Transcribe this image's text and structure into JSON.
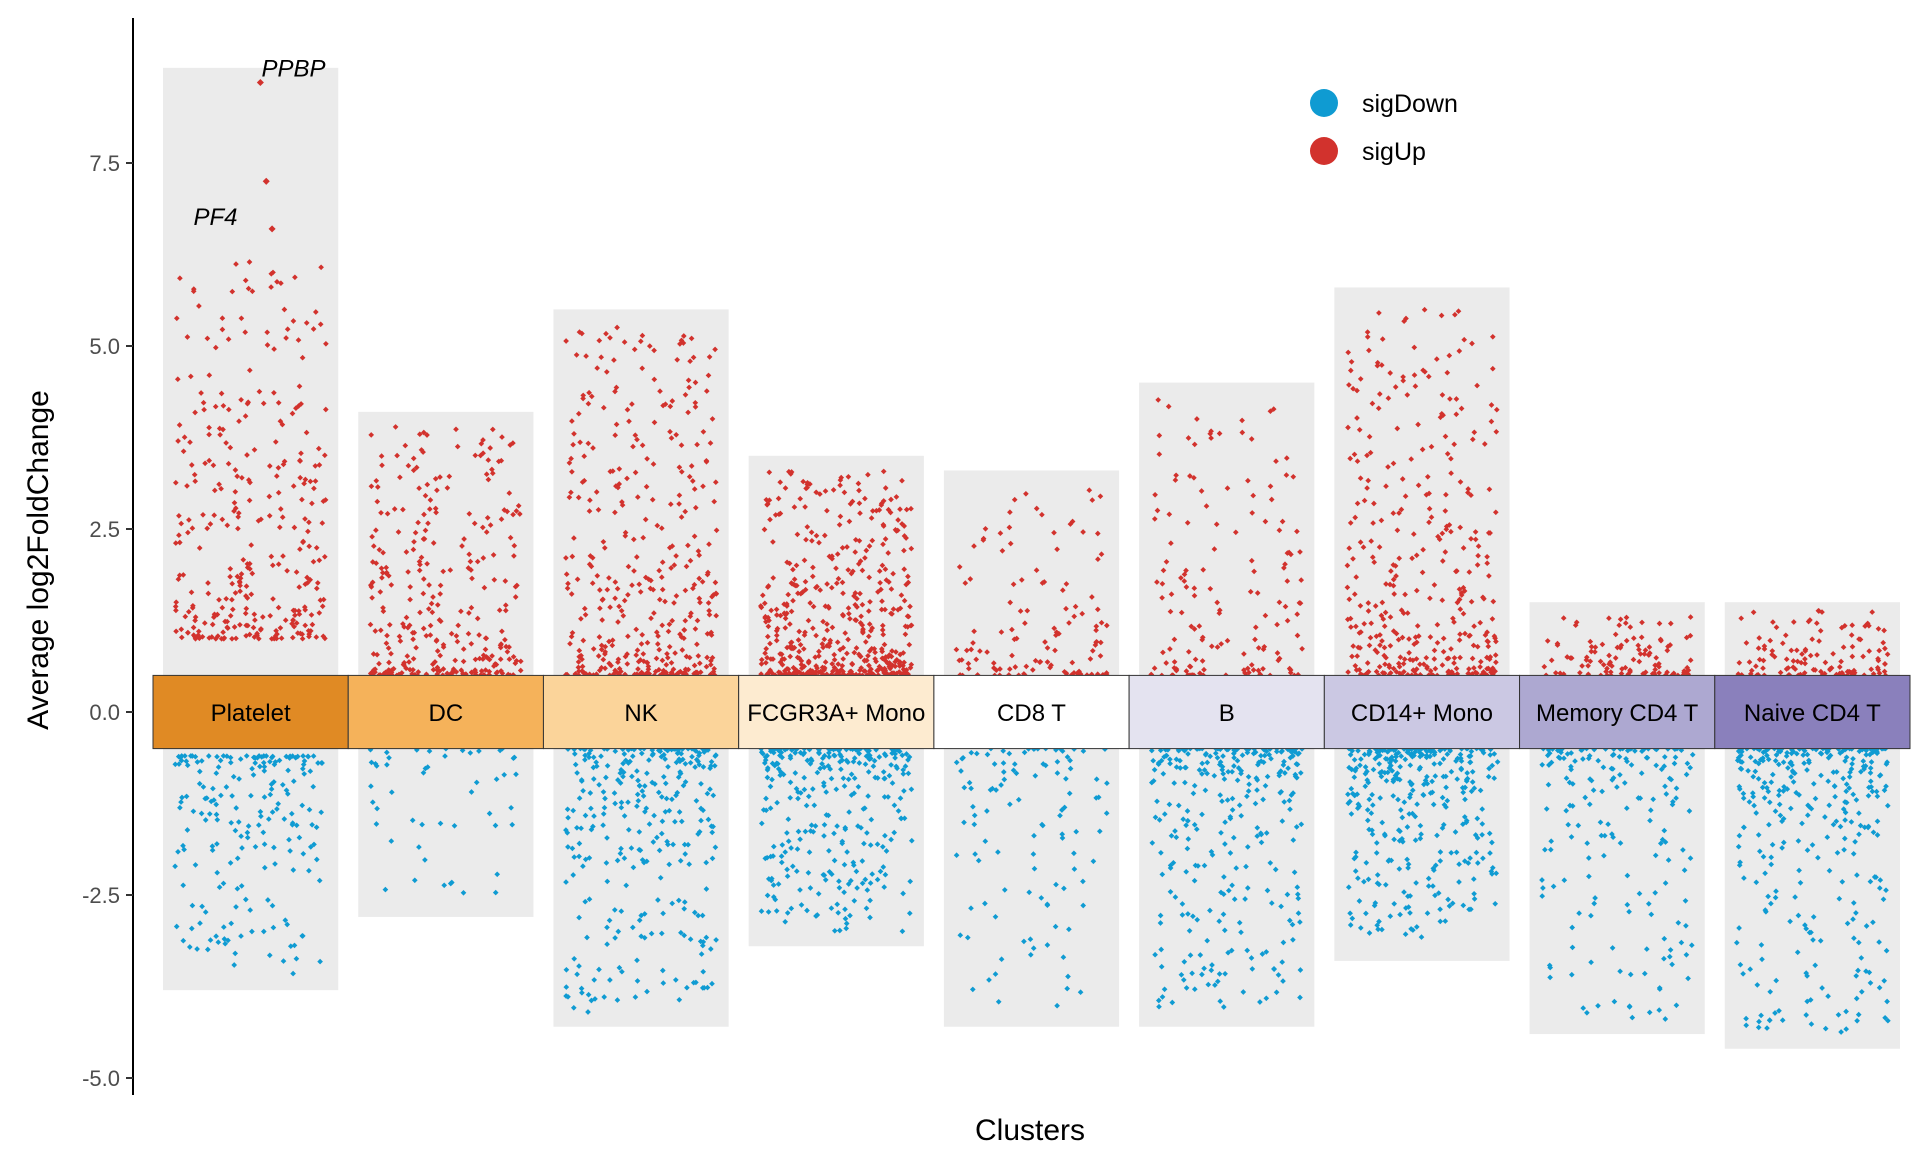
{
  "chart_data": {
    "type": "scatter",
    "title": "",
    "xlabel": "Clusters",
    "ylabel": "Average log2FoldChange",
    "ylim": [
      -5.0,
      9.5
    ],
    "yticks": [
      {
        "value": 7.5,
        "label": "7.5"
      },
      {
        "value": 5.0,
        "label": "5.0"
      },
      {
        "value": 2.5,
        "label": "2.5"
      },
      {
        "value": 0.0,
        "label": "0.0"
      },
      {
        "value": -2.5,
        "label": "-2.5"
      },
      {
        "value": -5.0,
        "label": "-5.0"
      }
    ],
    "grid": false,
    "legend_position": "top-right",
    "legend": [
      {
        "name": "sigDown",
        "color": "#0f9bd2"
      },
      {
        "name": "sigUp",
        "color": "#d2322d"
      }
    ],
    "clusters": [
      {
        "name": "Platelet",
        "color": "#e08a24",
        "bg_min": -3.8,
        "bg_max": 8.8,
        "up_n": 320,
        "up_range": [
          1.0,
          6.2
        ],
        "down_n": 200,
        "down_range": [
          -3.6,
          -0.6
        ]
      },
      {
        "name": "DC",
        "color": "#f5b25a",
        "bg_min": -2.8,
        "bg_max": 4.1,
        "up_n": 300,
        "up_range": [
          0.5,
          3.9
        ],
        "down_n": 50,
        "down_range": [
          -2.6,
          -0.5
        ]
      },
      {
        "name": "NK",
        "color": "#fbd49a",
        "bg_min": -4.3,
        "bg_max": 5.5,
        "up_n": 380,
        "up_range": [
          0.5,
          5.3
        ],
        "down_n": 300,
        "down_range": [
          -4.1,
          -0.5
        ]
      },
      {
        "name": "FCGR3A+ Mono",
        "color": "#fdebd0",
        "bg_min": -3.2,
        "bg_max": 3.5,
        "up_n": 480,
        "up_range": [
          0.5,
          3.3
        ],
        "down_n": 300,
        "down_range": [
          -3.0,
          -0.5
        ]
      },
      {
        "name": "CD8 T",
        "color": "#ffffff",
        "bg_min": -4.3,
        "bg_max": 3.3,
        "up_n": 120,
        "up_range": [
          0.5,
          3.1
        ],
        "down_n": 110,
        "down_range": [
          -4.1,
          -0.5
        ]
      },
      {
        "name": "B",
        "color": "#e4e3f0",
        "bg_min": -4.3,
        "bg_max": 4.5,
        "up_n": 150,
        "up_range": [
          0.5,
          4.3
        ],
        "down_n": 300,
        "down_range": [
          -4.1,
          -0.5
        ]
      },
      {
        "name": "CD14+ Mono",
        "color": "#cbc8e3",
        "bg_min": -3.4,
        "bg_max": 5.8,
        "up_n": 360,
        "up_range": [
          0.5,
          5.6
        ],
        "down_n": 330,
        "down_range": [
          -3.1,
          -0.5
        ]
      },
      {
        "name": "Memory CD4 T",
        "color": "#ada8d1",
        "bg_min": -4.4,
        "bg_max": 1.5,
        "up_n": 110,
        "up_range": [
          0.5,
          1.3
        ],
        "down_n": 180,
        "down_range": [
          -4.2,
          -0.5
        ]
      },
      {
        "name": "Naive CD4 T",
        "color": "#8a80bc",
        "bg_min": -4.6,
        "bg_max": 1.5,
        "up_n": 120,
        "up_range": [
          0.5,
          1.4
        ],
        "down_n": 320,
        "down_range": [
          -4.4,
          -0.5
        ]
      }
    ],
    "highlighted_points": [
      {
        "cluster": "Platelet",
        "value": 8.6
      },
      {
        "cluster": "Platelet",
        "value": 7.25
      },
      {
        "cluster": "Platelet",
        "value": 6.6
      }
    ],
    "annotations": [
      {
        "text": "PPBP",
        "cluster": "Platelet",
        "value": 8.6
      },
      {
        "text": "PF4",
        "cluster": "Platelet",
        "value": 6.6
      }
    ],
    "cluster_band_range": [
      -0.5,
      0.5
    ],
    "up_color": "#d2322d",
    "down_color": "#0f9bd2",
    "background_color": "#ebebeb"
  }
}
